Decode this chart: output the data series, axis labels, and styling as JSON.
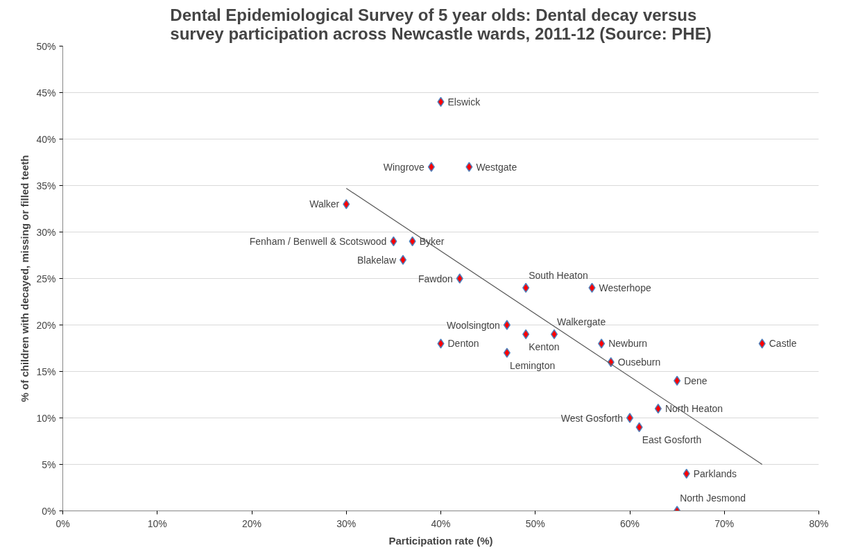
{
  "chart_data": {
    "type": "scatter",
    "title": "Dental Epidemiological Survey of 5 year olds:   Dental decay versus\nsurvey participation across Newcastle wards, 2011-12 (Source: PHE)",
    "xlabel": "Participation rate (%)",
    "ylabel": "% of children with decayed, missing or filled teeth",
    "series": [
      {
        "marker": "diamond",
        "color": "#ff0000",
        "x": [
          40,
          39,
          43,
          30,
          35,
          37,
          36,
          42,
          49,
          56,
          47,
          52,
          49,
          40,
          47,
          57,
          74,
          58,
          65,
          60,
          63,
          61,
          66,
          65
        ],
        "values": [
          44,
          37,
          37,
          33,
          29,
          29,
          27,
          25,
          24,
          24,
          20,
          19,
          19,
          18,
          17,
          18,
          18,
          16,
          14,
          10,
          11,
          9,
          4,
          0
        ]
      },
      {
        "type": "line",
        "color": "#595959",
        "x": [
          30,
          74
        ],
        "values": [
          34.7,
          5
        ]
      }
    ],
    "annotations": [
      {
        "text": "Elswick",
        "x": 40,
        "y": 44
      },
      {
        "text": "Wingrove",
        "x": 39,
        "y": 37
      },
      {
        "text": "Westgate",
        "x": 43,
        "y": 37
      },
      {
        "text": "Walker",
        "x": 30,
        "y": 33
      },
      {
        "text": "Fenham / Benwell & Scotswood",
        "x": 35,
        "y": 29
      },
      {
        "text": "Byker",
        "x": 37,
        "y": 29
      },
      {
        "text": "Blakelaw",
        "x": 36,
        "y": 27
      },
      {
        "text": "Fawdon",
        "x": 42,
        "y": 25
      },
      {
        "text": "South Heaton",
        "x": 49,
        "y": 24
      },
      {
        "text": "Westerhope",
        "x": 56,
        "y": 24
      },
      {
        "text": "Woolsington",
        "x": 47,
        "y": 20
      },
      {
        "text": "Walkergate",
        "x": 52,
        "y": 19
      },
      {
        "text": "Kenton",
        "x": 49,
        "y": 19
      },
      {
        "text": "Denton",
        "x": 40,
        "y": 18
      },
      {
        "text": "Lemington",
        "x": 47,
        "y": 17
      },
      {
        "text": "Newburn",
        "x": 57,
        "y": 18
      },
      {
        "text": "Castle",
        "x": 74,
        "y": 18
      },
      {
        "text": "Ouseburn",
        "x": 58,
        "y": 16
      },
      {
        "text": "Dene",
        "x": 65,
        "y": 14
      },
      {
        "text": "West Gosforth",
        "x": 60,
        "y": 10
      },
      {
        "text": "North Heaton",
        "x": 63,
        "y": 11
      },
      {
        "text": "East Gosforth",
        "x": 61,
        "y": 9
      },
      {
        "text": "Parklands",
        "x": 66,
        "y": 4
      },
      {
        "text": "North Jesmond",
        "x": 65,
        "y": 0
      }
    ],
    "xlim": [
      0,
      80
    ],
    "ylim": [
      0,
      50
    ],
    "xticks": [
      {
        "value": 0,
        "label": "0%"
      },
      {
        "value": 10,
        "label": "10%"
      },
      {
        "value": 20,
        "label": "20%"
      },
      {
        "value": 30,
        "label": "30%"
      },
      {
        "value": 40,
        "label": "40%"
      },
      {
        "value": 50,
        "label": "50%"
      },
      {
        "value": 60,
        "label": "60%"
      },
      {
        "value": 70,
        "label": "70%"
      },
      {
        "value": 80,
        "label": "80%"
      }
    ],
    "yticks": [
      {
        "value": 0,
        "label": "0%"
      },
      {
        "value": 5,
        "label": "5%"
      },
      {
        "value": 10,
        "label": "10%"
      },
      {
        "value": 15,
        "label": "15%"
      },
      {
        "value": 20,
        "label": "20%"
      },
      {
        "value": 25,
        "label": "25%"
      },
      {
        "value": 30,
        "label": "30%"
      },
      {
        "value": 35,
        "label": "35%"
      },
      {
        "value": 40,
        "label": "40%"
      },
      {
        "value": 45,
        "label": "45%"
      },
      {
        "value": 50,
        "label": "50%"
      }
    ],
    "grid": "y"
  }
}
